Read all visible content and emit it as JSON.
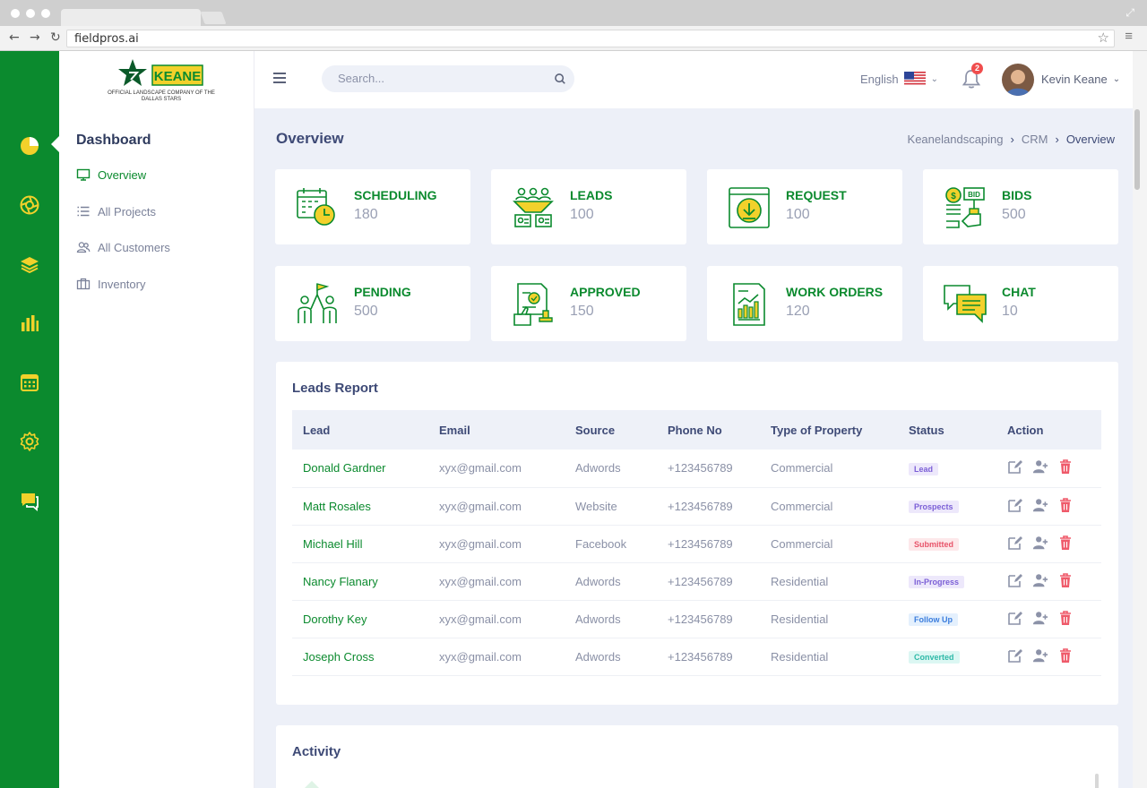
{
  "browser": {
    "url": "fieldpros.ai"
  },
  "logo": {
    "brand_text": "KEANE",
    "subtitle": "OFFICIAL LANDSCAPE COMPANY OF THE DALLAS STARS"
  },
  "colors": {
    "brand_green": "#0b8a2e",
    "accent_yellow": "#f2d12b",
    "heading": "#3e4a76"
  },
  "rail": {
    "items": [
      {
        "icon": "pie-chart-icon"
      },
      {
        "icon": "aperture-icon"
      },
      {
        "icon": "layers-icon"
      },
      {
        "icon": "bar-chart-icon"
      },
      {
        "icon": "calendar-icon"
      },
      {
        "icon": "gear-icon"
      },
      {
        "icon": "chat-icon"
      }
    ]
  },
  "subnav": {
    "title": "Dashboard",
    "items": [
      {
        "label": "Overview",
        "icon": "monitor-icon",
        "active": true
      },
      {
        "label": "All Projects",
        "icon": "list-icon"
      },
      {
        "label": "All Customers",
        "icon": "users-icon"
      },
      {
        "label": "Inventory",
        "icon": "briefcase-icon"
      }
    ]
  },
  "topbar": {
    "search_placeholder": "Search...",
    "language": "English",
    "notification_count": "2",
    "user_name": "Kevin Keane"
  },
  "page": {
    "title": "Overview",
    "breadcrumb": [
      "Keanelandscaping",
      "CRM",
      "Overview"
    ]
  },
  "stats": [
    {
      "title": "SCHEDULING",
      "value": "180",
      "icon": "calendar-clock-icon"
    },
    {
      "title": "LEADS",
      "value": "100",
      "icon": "people-funnel-icon"
    },
    {
      "title": "REQUEST",
      "value": "100",
      "icon": "download-request-icon"
    },
    {
      "title": "BIDS",
      "value": "500",
      "icon": "bid-hand-icon"
    },
    {
      "title": "PENDING",
      "value": "500",
      "icon": "team-flag-icon"
    },
    {
      "title": "APPROVED",
      "value": "150",
      "icon": "approved-document-icon"
    },
    {
      "title": "WORK ORDERS",
      "value": "120",
      "icon": "report-chart-icon"
    },
    {
      "title": "CHAT",
      "value": "10",
      "icon": "chat-bubbles-icon"
    }
  ],
  "leads_report": {
    "title": "Leads Report",
    "columns": [
      "Lead",
      "Email",
      "Source",
      "Phone No",
      "Type of Property",
      "Status",
      "Action"
    ],
    "rows": [
      {
        "lead": "Donald Gardner",
        "email": "xyx@gmail.com",
        "source": "Adwords",
        "phone": "+123456789",
        "type": "Commercial",
        "status": "Lead"
      },
      {
        "lead": "Matt Rosales",
        "email": "xyx@gmail.com",
        "source": "Website",
        "phone": "+123456789",
        "type": "Commercial",
        "status": "Prospects"
      },
      {
        "lead": "Michael Hill",
        "email": "xyx@gmail.com",
        "source": "Facebook",
        "phone": "+123456789",
        "type": "Commercial",
        "status": "Submitted"
      },
      {
        "lead": "Nancy Flanary",
        "email": "xyx@gmail.com",
        "source": "Adwords",
        "phone": "+123456789",
        "type": "Residential",
        "status": "In-Progress"
      },
      {
        "lead": "Dorothy Key",
        "email": "xyx@gmail.com",
        "source": "Adwords",
        "phone": "+123456789",
        "type": "Residential",
        "status": "Follow Up"
      },
      {
        "lead": "Joseph Cross",
        "email": "xyx@gmail.com",
        "source": "Adwords",
        "phone": "+123456789",
        "type": "Residential",
        "status": "Converted"
      }
    ],
    "status_colors": {
      "Lead": {
        "bg": "#ede8fb",
        "fg": "#7b5fd6"
      },
      "Prospects": {
        "bg": "#ede8fb",
        "fg": "#7b5fd6"
      },
      "Submitted": {
        "bg": "#fde8ea",
        "fg": "#e8546a"
      },
      "In-Progress": {
        "bg": "#ede8fb",
        "fg": "#7b5fd6"
      },
      "Follow Up": {
        "bg": "#e4f0fd",
        "fg": "#3b7ddd"
      },
      "Converted": {
        "bg": "#dcf7f3",
        "fg": "#2fb9a8"
      }
    }
  },
  "activity": {
    "title": "Activity"
  }
}
